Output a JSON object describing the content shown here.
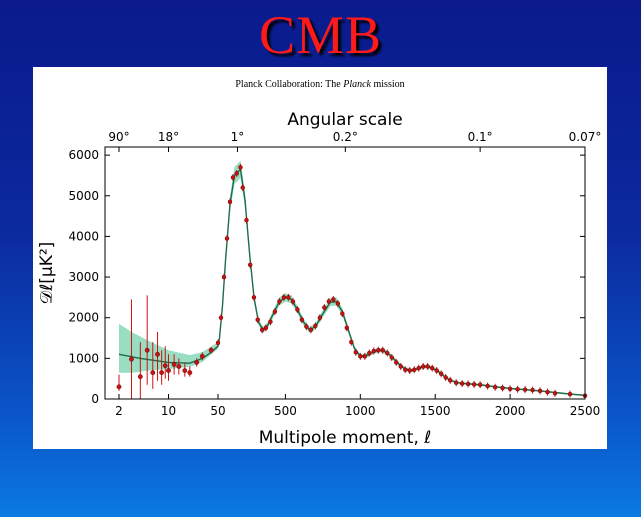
{
  "slide": {
    "title": "CMB"
  },
  "caption": {
    "prefix": "Planck Collaboration: The ",
    "italic": "Planck",
    "suffix": " mission"
  },
  "chart_data": {
    "type": "scatter",
    "top_axis": {
      "label": "Angular scale",
      "ticks": [
        {
          "ell": 2,
          "label": "90°"
        },
        {
          "ell": 10,
          "label": "18°"
        },
        {
          "ell": 180,
          "label": "1°"
        },
        {
          "ell": 900,
          "label": "0.2°"
        },
        {
          "ell": 1800,
          "label": "0.1°"
        },
        {
          "ell": 2500,
          "label": "0.07°"
        }
      ]
    },
    "xlabel": "Multipole moment, ℓ",
    "ylabel": "𝒟ℓ[μK²]",
    "x_ticks": [
      2,
      10,
      50,
      500,
      1000,
      1500,
      2000,
      2500
    ],
    "x_tick_labels": [
      "2",
      "10",
      "50",
      "500",
      "1000",
      "1500",
      "2000",
      "2500"
    ],
    "x_scale": "log for ℓ ≤ 50, linear for ℓ > 50",
    "ylim": [
      0,
      6200
    ],
    "y_ticks": [
      0,
      1000,
      2000,
      3000,
      4000,
      5000,
      6000
    ],
    "colors": {
      "points": "#cc1111",
      "model": "#1a6e48",
      "band": "#7fd4b4"
    },
    "low_ell_points": [
      {
        "x": 2,
        "y": 300,
        "err": [
          200,
          600
        ]
      },
      {
        "x": 3,
        "y": 980,
        "err": [
          0,
          2450
        ]
      },
      {
        "x": 4,
        "y": 550,
        "err": [
          0,
          1400
        ]
      },
      {
        "x": 5,
        "y": 1200,
        "err": [
          350,
          2550
        ]
      },
      {
        "x": 6,
        "y": 650,
        "err": [
          250,
          1400
        ]
      },
      {
        "x": 7,
        "y": 1100,
        "err": [
          450,
          1650
        ]
      },
      {
        "x": 8,
        "y": 650,
        "err": [
          350,
          1200
        ]
      },
      {
        "x": 9,
        "y": 820,
        "err": [
          500,
          1300
        ]
      },
      {
        "x": 10,
        "y": 700,
        "err": [
          450,
          1100
        ]
      },
      {
        "x": 12,
        "y": 850,
        "err": [
          600,
          1100
        ]
      },
      {
        "x": 14,
        "y": 800,
        "err": [
          600,
          1000
        ]
      },
      {
        "x": 17,
        "y": 700,
        "err": [
          550,
          900
        ]
      },
      {
        "x": 20,
        "y": 650,
        "err": [
          550,
          800
        ]
      },
      {
        "x": 25,
        "y": 900,
        "err": [
          800,
          1000
        ]
      },
      {
        "x": 30,
        "y": 1050,
        "err": [
          950,
          1150
        ]
      },
      {
        "x": 40,
        "y": 1200,
        "err": [
          1120,
          1280
        ]
      }
    ],
    "high_ell_points": [
      [
        50,
        1380
      ],
      [
        70,
        2000
      ],
      [
        90,
        3000
      ],
      [
        110,
        3950
      ],
      [
        130,
        4850
      ],
      [
        150,
        5450
      ],
      [
        175,
        5550
      ],
      [
        200,
        5700
      ],
      [
        215,
        5200
      ],
      [
        240,
        4400
      ],
      [
        265,
        3300
      ],
      [
        290,
        2500
      ],
      [
        315,
        1950
      ],
      [
        345,
        1700
      ],
      [
        370,
        1750
      ],
      [
        400,
        1900
      ],
      [
        430,
        2150
      ],
      [
        460,
        2400
      ],
      [
        490,
        2500
      ],
      [
        520,
        2500
      ],
      [
        550,
        2400
      ],
      [
        580,
        2200
      ],
      [
        610,
        1950
      ],
      [
        640,
        1780
      ],
      [
        670,
        1700
      ],
      [
        700,
        1800
      ],
      [
        730,
        2000
      ],
      [
        760,
        2250
      ],
      [
        790,
        2400
      ],
      [
        820,
        2450
      ],
      [
        850,
        2350
      ],
      [
        880,
        2100
      ],
      [
        910,
        1750
      ],
      [
        940,
        1400
      ],
      [
        970,
        1150
      ],
      [
        1000,
        1050
      ],
      [
        1030,
        1050
      ],
      [
        1060,
        1130
      ],
      [
        1090,
        1180
      ],
      [
        1120,
        1200
      ],
      [
        1150,
        1200
      ],
      [
        1180,
        1130
      ],
      [
        1210,
        1020
      ],
      [
        1240,
        900
      ],
      [
        1270,
        800
      ],
      [
        1300,
        720
      ],
      [
        1330,
        700
      ],
      [
        1360,
        720
      ],
      [
        1390,
        760
      ],
      [
        1420,
        800
      ],
      [
        1450,
        800
      ],
      [
        1480,
        760
      ],
      [
        1510,
        700
      ],
      [
        1540,
        620
      ],
      [
        1570,
        530
      ],
      [
        1600,
        460
      ],
      [
        1640,
        400
      ],
      [
        1680,
        380
      ],
      [
        1720,
        370
      ],
      [
        1760,
        360
      ],
      [
        1800,
        350
      ],
      [
        1850,
        320
      ],
      [
        1900,
        290
      ],
      [
        1950,
        270
      ],
      [
        2000,
        250
      ],
      [
        2050,
        240
      ],
      [
        2100,
        230
      ],
      [
        2150,
        220
      ],
      [
        2200,
        200
      ],
      [
        2250,
        170
      ],
      [
        2300,
        140
      ],
      [
        2400,
        120
      ],
      [
        2500,
        80
      ]
    ],
    "model_curve": [
      [
        2,
        1100
      ],
      [
        4,
        1000
      ],
      [
        10,
        900
      ],
      [
        20,
        880
      ],
      [
        30,
        1000
      ],
      [
        40,
        1150
      ],
      [
        50,
        1300
      ],
      [
        60,
        1500
      ],
      [
        80,
        2300
      ],
      [
        100,
        3400
      ],
      [
        130,
        4800
      ],
      [
        160,
        5500
      ],
      [
        200,
        5650
      ],
      [
        230,
        4900
      ],
      [
        260,
        3600
      ],
      [
        290,
        2500
      ],
      [
        320,
        1900
      ],
      [
        350,
        1700
      ],
      [
        380,
        1800
      ],
      [
        420,
        2100
      ],
      [
        460,
        2400
      ],
      [
        500,
        2500
      ],
      [
        540,
        2450
      ],
      [
        580,
        2200
      ],
      [
        620,
        1900
      ],
      [
        660,
        1700
      ],
      [
        700,
        1780
      ],
      [
        750,
        2100
      ],
      [
        800,
        2380
      ],
      [
        840,
        2400
      ],
      [
        880,
        2150
      ],
      [
        920,
        1700
      ],
      [
        960,
        1250
      ],
      [
        1000,
        1050
      ],
      [
        1050,
        1080
      ],
      [
        1100,
        1180
      ],
      [
        1140,
        1200
      ],
      [
        1180,
        1140
      ],
      [
        1220,
        1000
      ],
      [
        1260,
        850
      ],
      [
        1300,
        740
      ],
      [
        1350,
        700
      ],
      [
        1400,
        770
      ],
      [
        1440,
        800
      ],
      [
        1480,
        760
      ],
      [
        1520,
        680
      ],
      [
        1560,
        560
      ],
      [
        1600,
        460
      ],
      [
        1650,
        400
      ],
      [
        1700,
        380
      ],
      [
        1800,
        350
      ],
      [
        1900,
        300
      ],
      [
        2000,
        260
      ],
      [
        2100,
        230
      ],
      [
        2200,
        200
      ],
      [
        2300,
        160
      ],
      [
        2400,
        120
      ],
      [
        2500,
        90
      ]
    ],
    "cosmic_variance_band": [
      [
        2,
        1100,
        1850
      ],
      [
        3,
        1020,
        1650
      ],
      [
        5,
        980,
        1450
      ],
      [
        10,
        910,
        1200
      ],
      [
        20,
        900,
        1080
      ],
      [
        30,
        1000,
        1150
      ],
      [
        50,
        1300,
        1400
      ]
    ]
  }
}
